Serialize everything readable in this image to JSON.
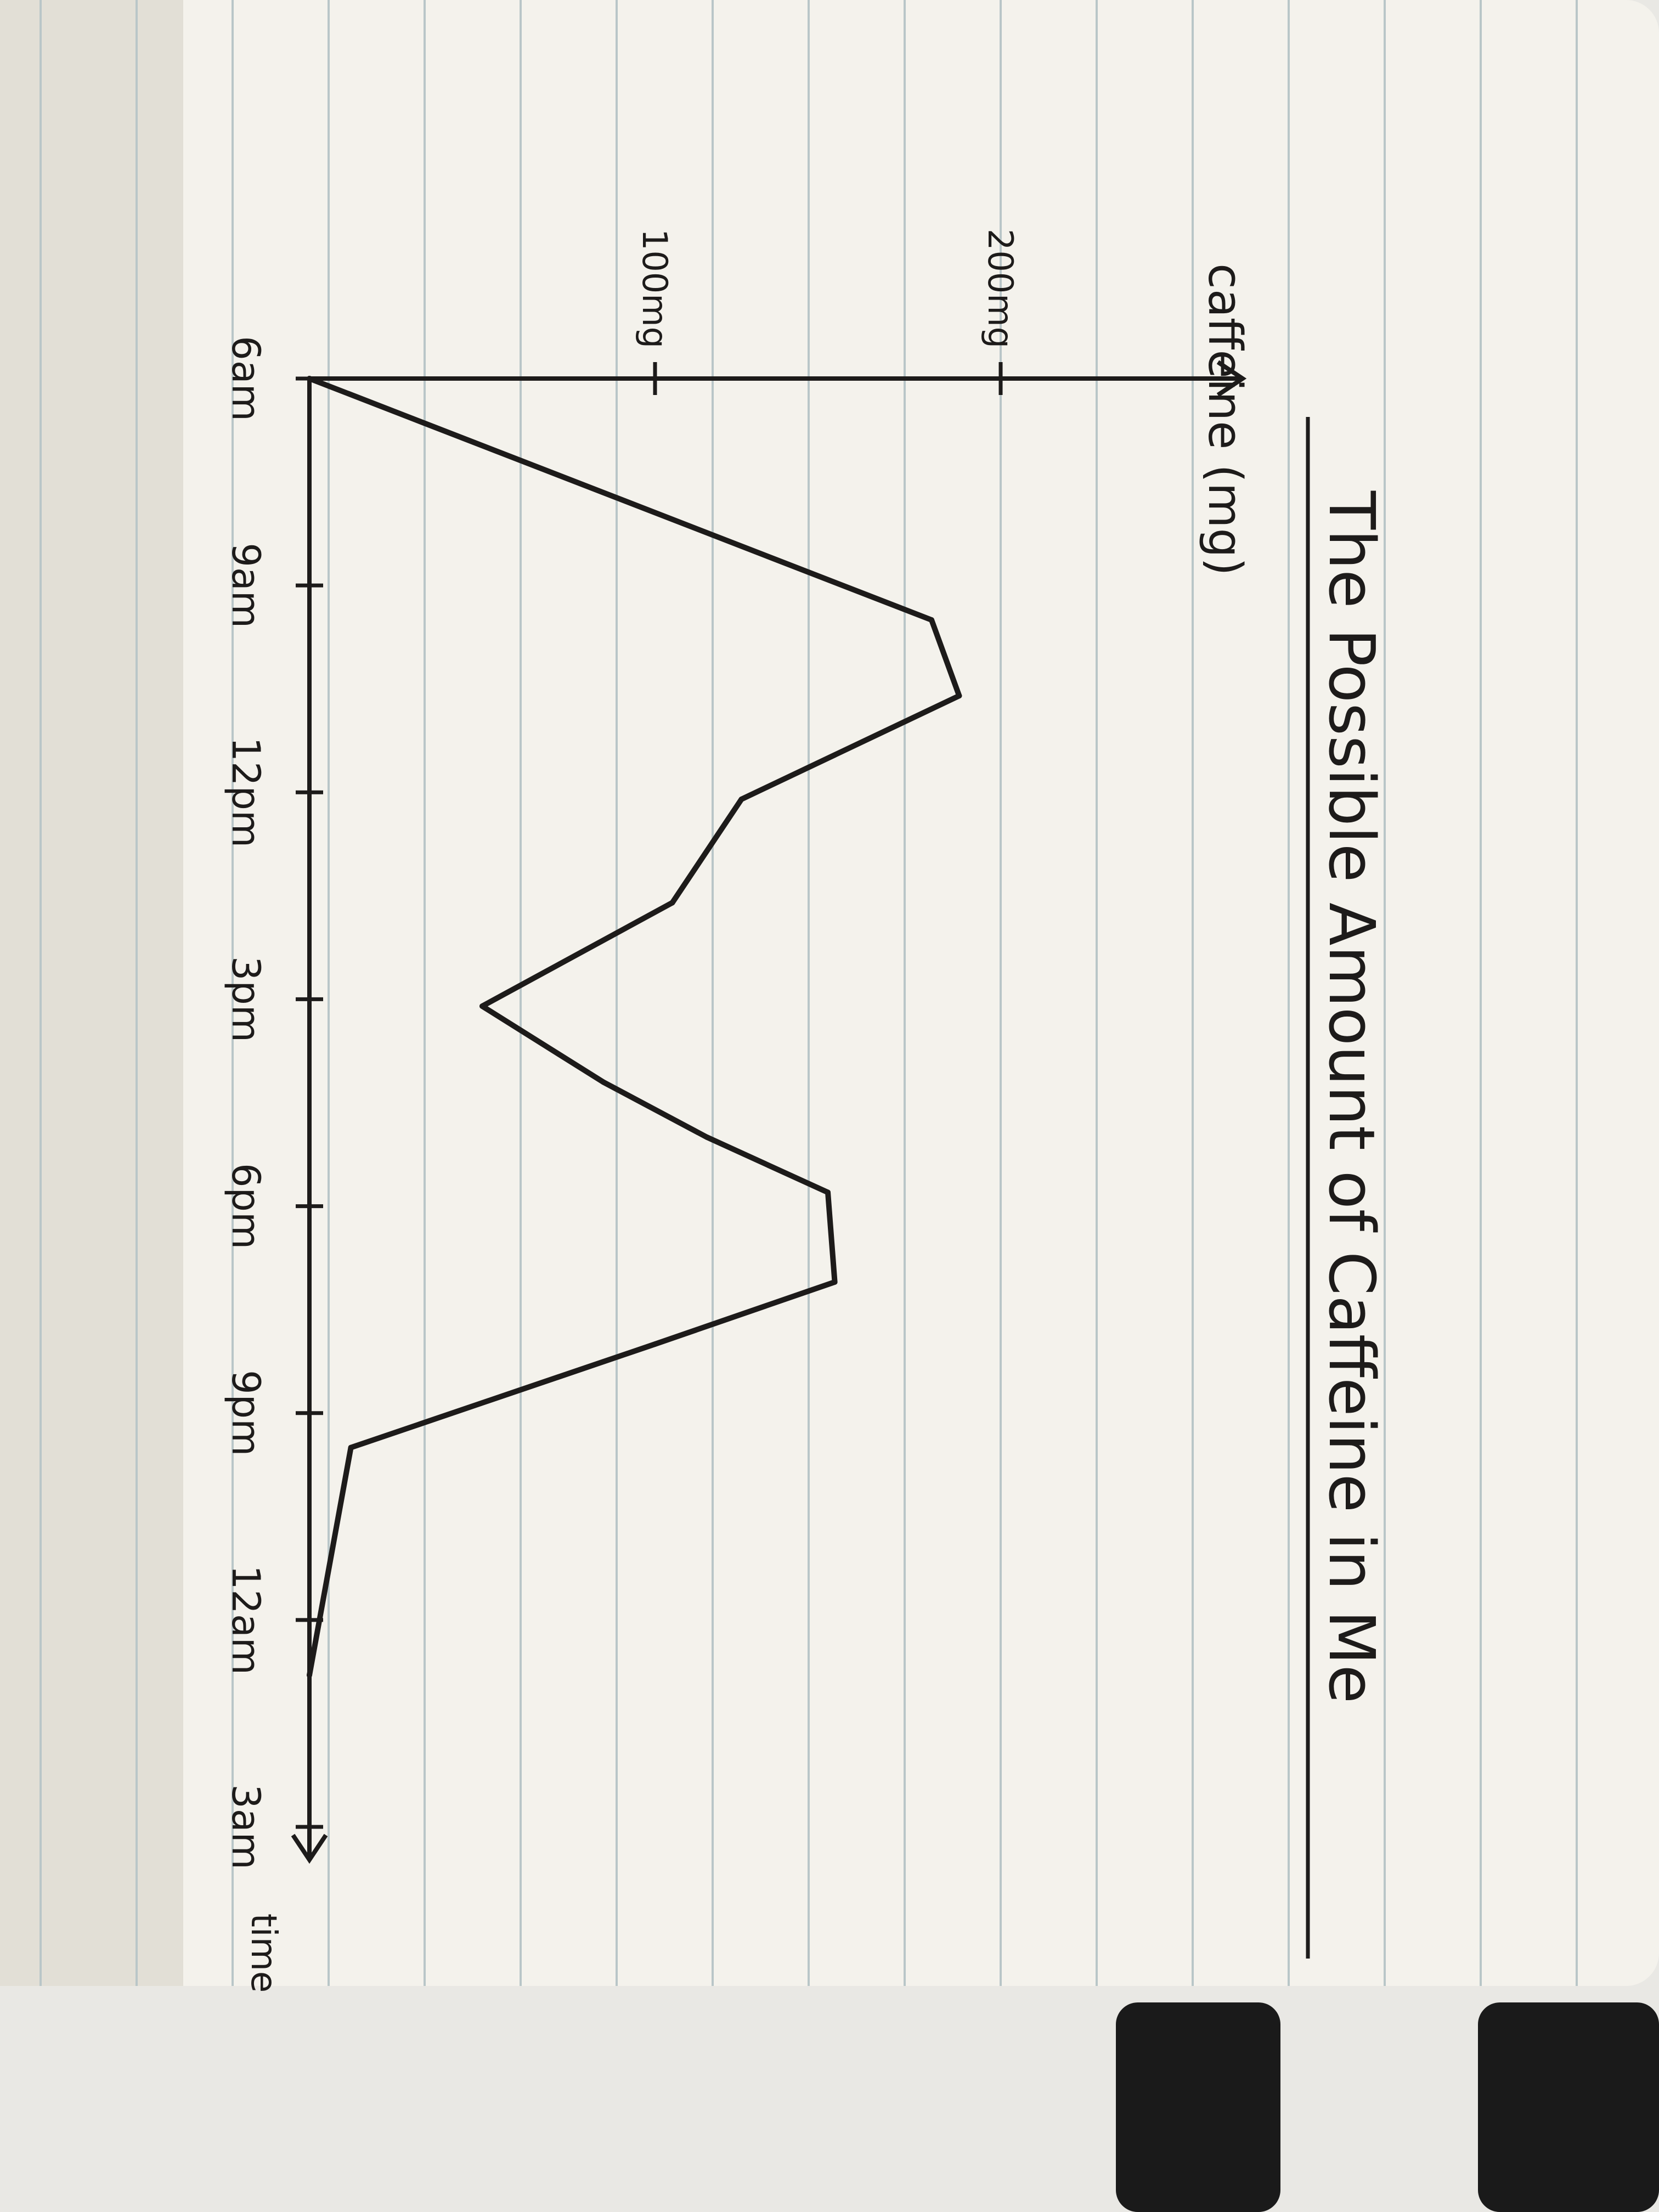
{
  "colors": {
    "paper": "#f4f2ec",
    "page_edge": "#e2dfd6",
    "rule_line": "#b9c6c8",
    "ink": "#1d1b1a",
    "background": "#e9e8e4",
    "strap": "#1a1a1a"
  },
  "chart_data": {
    "type": "line",
    "title": "The Possible Amount of Caffeine in Me",
    "xlabel": "time",
    "ylabel": "caffeine (mg)",
    "x_ticks": [
      "6am",
      "9am",
      "12pm",
      "3pm",
      "6pm",
      "9pm",
      "12am",
      "3am"
    ],
    "y_ticks": [
      {
        "value": 100,
        "label": "100mg"
      },
      {
        "value": 200,
        "label": "200mg"
      }
    ],
    "ylim": [
      0,
      270
    ],
    "grid": false,
    "legend": "none",
    "series": [
      {
        "x": [
          6,
          9.5,
          10.6,
          12.1,
          13.6,
          15.1,
          16.2,
          17.0,
          17.8,
          19.1,
          20.0,
          21.5,
          24.8
        ],
        "y": [
          0,
          180,
          188,
          125,
          105,
          50,
          85,
          115,
          150,
          152,
          100,
          12,
          0
        ]
      }
    ]
  }
}
